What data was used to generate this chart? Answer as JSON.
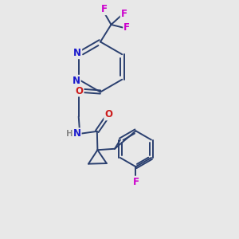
{
  "bg_color": "#e8e8e8",
  "bond_color": "#2a3f6f",
  "atom_colors": {
    "N": "#1a1acc",
    "O": "#cc1a1a",
    "F": "#cc00cc",
    "H": "#888888",
    "C": "#2a3f6f"
  },
  "line_width": 1.4,
  "font_size": 8.5,
  "fig_size": [
    3.0,
    3.0
  ],
  "dpi": 100,
  "xlim": [
    0,
    10
  ],
  "ylim": [
    0,
    10
  ]
}
